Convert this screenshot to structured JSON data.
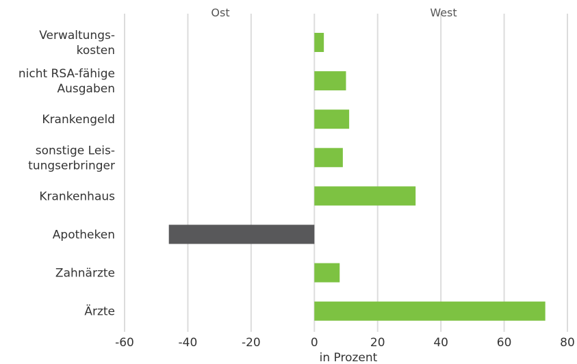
{
  "chart_data": {
    "type": "bar",
    "orientation": "horizontal",
    "categories": [
      [
        "Verwaltungs-",
        "kosten"
      ],
      [
        "nicht RSA-fähige",
        "Ausgaben"
      ],
      [
        "Krankengeld"
      ],
      [
        "sonstige Leis-",
        "tungserbringer"
      ],
      [
        "Krankenhaus"
      ],
      [
        "Apotheken"
      ],
      [
        "Zahnärzte"
      ],
      [
        "Ärzte"
      ]
    ],
    "values": [
      3,
      10,
      11,
      9,
      32,
      -46,
      8,
      73
    ],
    "xlim": [
      -60,
      80
    ],
    "xticks": [
      "-60",
      "-40",
      "-20",
      "0",
      "20",
      "40",
      "60",
      "80"
    ],
    "xtick_values": [
      -60,
      -40,
      -20,
      0,
      20,
      40,
      60,
      80
    ],
    "xlabel": "in Prozent",
    "region_labels": {
      "negative": "Ost",
      "positive": "West"
    },
    "grid": true,
    "colors": {
      "positive": "#7dc242",
      "negative": "#58585a",
      "grid": "#dcdcdc"
    }
  }
}
